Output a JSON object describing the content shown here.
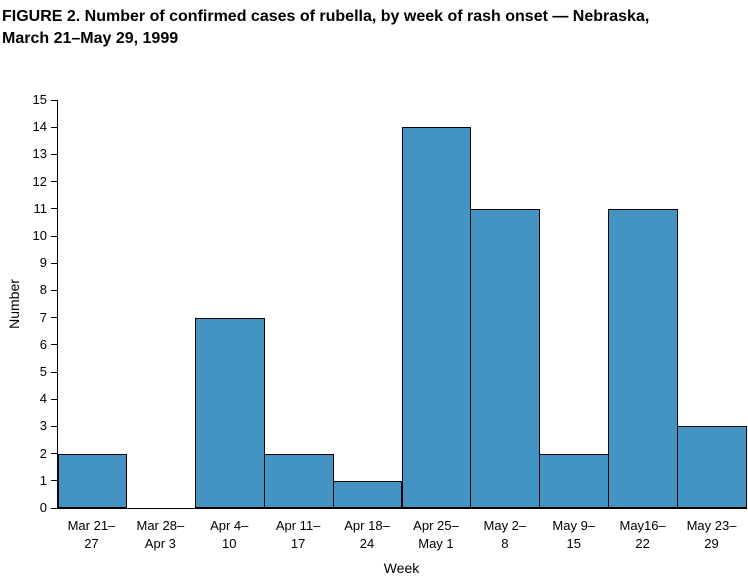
{
  "title": {
    "line1": "FIGURE 2. Number of confirmed cases of rubella, by week of rash onset — Nebraska,",
    "line2": "March 21–May 29, 1999"
  },
  "chart_data": {
    "type": "bar",
    "title": "FIGURE 2. Number of confirmed cases of rubella, by week of rash onset — Nebraska, March 21–May 29, 1999",
    "categories": [
      [
        "Mar 21–",
        "27"
      ],
      [
        "Mar 28–",
        "Apr 3"
      ],
      [
        "Apr 4–",
        "10"
      ],
      [
        "Apr 11–",
        "17"
      ],
      [
        "Apr 18–",
        "24"
      ],
      [
        "Apr 25–",
        "May 1"
      ],
      [
        "May 2–",
        "8"
      ],
      [
        "May 9–",
        "15"
      ],
      [
        "May16–",
        "22"
      ],
      [
        "May 23–",
        "29"
      ]
    ],
    "values": [
      2,
      0,
      7,
      2,
      1,
      14,
      11,
      2,
      11,
      3
    ],
    "xlabel": "Week",
    "ylabel": "Number",
    "ylim": [
      0,
      15
    ],
    "ytick_step": 1,
    "bar_color": "#4393c3",
    "bar_border_color": "#000000",
    "grid": false,
    "legend": "none",
    "bar_style": "adjacent-histogram"
  }
}
